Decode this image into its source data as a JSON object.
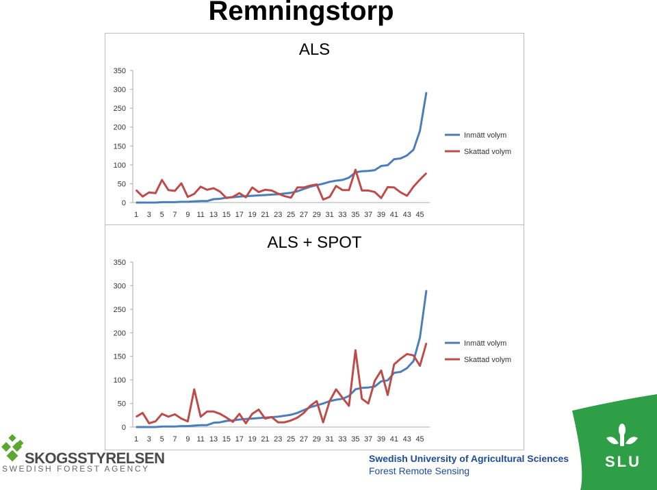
{
  "title": "Remningstorp",
  "chart_data": [
    {
      "type": "line",
      "title": "ALS",
      "x": [
        1,
        2,
        3,
        4,
        5,
        6,
        7,
        8,
        9,
        10,
        11,
        12,
        13,
        14,
        15,
        16,
        17,
        18,
        19,
        20,
        21,
        22,
        23,
        24,
        25,
        26,
        27,
        28,
        29,
        30,
        31,
        32,
        33,
        34,
        35,
        36,
        37,
        38,
        39,
        40,
        41,
        42,
        43,
        44,
        45,
        46
      ],
      "x_tick_labels": [
        "1",
        "3",
        "5",
        "7",
        "9",
        "11",
        "13",
        "15",
        "17",
        "19",
        "21",
        "23",
        "25",
        "27",
        "29",
        "31",
        "33",
        "35",
        "37",
        "39",
        "41",
        "43",
        "45"
      ],
      "ylim": [
        0,
        350
      ],
      "y_ticks": [
        0,
        50,
        100,
        150,
        200,
        250,
        300,
        350
      ],
      "legend_position": "right",
      "series": [
        {
          "name": "Inmätt volym",
          "color": "#4a7ebb",
          "values": [
            0,
            0,
            0,
            0,
            1,
            1,
            1,
            2,
            2,
            3,
            4,
            4,
            9,
            10,
            13,
            14,
            16,
            17,
            18,
            19,
            20,
            21,
            22,
            24,
            26,
            30,
            36,
            42,
            46,
            50,
            55,
            58,
            60,
            66,
            80,
            83,
            84,
            86,
            97,
            99,
            115,
            117,
            125,
            140,
            190,
            292
          ]
        },
        {
          "name": "Skattad volym",
          "color": "#be4b48",
          "values": [
            33,
            16,
            27,
            25,
            60,
            33,
            31,
            51,
            15,
            23,
            42,
            34,
            38,
            29,
            12,
            15,
            25,
            14,
            40,
            28,
            34,
            32,
            24,
            17,
            13,
            40,
            40,
            45,
            48,
            8,
            15,
            44,
            33,
            33,
            87,
            32,
            32,
            28,
            12,
            41,
            40,
            27,
            18,
            42,
            61,
            78
          ]
        }
      ]
    },
    {
      "type": "line",
      "title": "ALS + SPOT",
      "x": [
        1,
        2,
        3,
        4,
        5,
        6,
        7,
        8,
        9,
        10,
        11,
        12,
        13,
        14,
        15,
        16,
        17,
        18,
        19,
        20,
        21,
        22,
        23,
        24,
        25,
        26,
        27,
        28,
        29,
        30,
        31,
        32,
        33,
        34,
        35,
        36,
        37,
        38,
        39,
        40,
        41,
        42,
        43,
        44,
        45,
        46
      ],
      "x_tick_labels": [
        "1",
        "3",
        "5",
        "7",
        "9",
        "11",
        "13",
        "15",
        "17",
        "19",
        "21",
        "23",
        "25",
        "27",
        "29",
        "31",
        "33",
        "35",
        "37",
        "39",
        "41",
        "43",
        "45"
      ],
      "ylim": [
        0,
        350
      ],
      "y_ticks": [
        0,
        50,
        100,
        150,
        200,
        250,
        300,
        350
      ],
      "legend_position": "right",
      "series": [
        {
          "name": "Inmätt volym",
          "color": "#4a7ebb",
          "values": [
            0,
            0,
            0,
            0,
            1,
            1,
            1,
            2,
            2,
            3,
            4,
            4,
            9,
            10,
            13,
            14,
            16,
            17,
            18,
            19,
            20,
            21,
            22,
            24,
            26,
            30,
            36,
            42,
            46,
            50,
            55,
            58,
            60,
            66,
            80,
            83,
            84,
            86,
            97,
            99,
            115,
            117,
            125,
            140,
            190,
            290
          ]
        },
        {
          "name": "Skattad volym",
          "color": "#be4b48",
          "values": [
            22,
            30,
            8,
            12,
            28,
            22,
            27,
            18,
            12,
            80,
            22,
            33,
            33,
            28,
            20,
            11,
            28,
            8,
            28,
            37,
            18,
            21,
            10,
            10,
            14,
            20,
            30,
            45,
            55,
            10,
            55,
            80,
            62,
            45,
            163,
            60,
            50,
            98,
            120,
            68,
            133,
            145,
            155,
            152,
            130,
            178
          ]
        }
      ]
    }
  ],
  "logos": {
    "skogsstyrelsen_name": "SKOGSSTYRELSEN",
    "skogsstyrelsen_sub": "SWEDISH FOREST AGENCY",
    "slu_name": "Swedish University of Agricultural Sciences",
    "slu_sub": "Forest Remote Sensing",
    "slu_mark": "SLU"
  },
  "colors": {
    "slu_green": "#2e9f47",
    "skogsstyrelsen_green": "#5aa832",
    "slu_blue": "#1c4b9e"
  }
}
